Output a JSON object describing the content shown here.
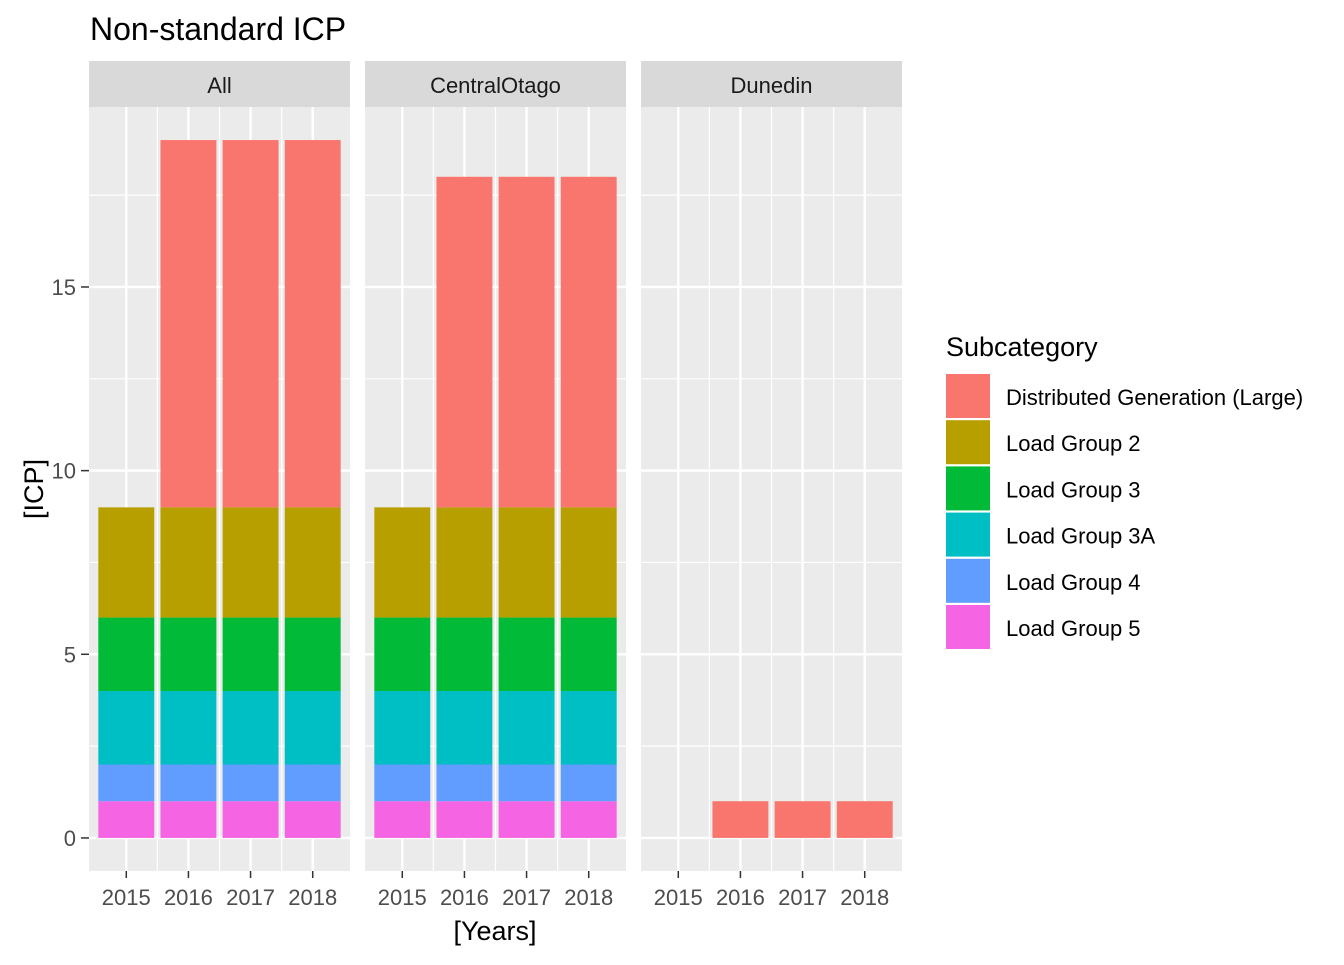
{
  "chart_data": {
    "type": "bar",
    "stacked": true,
    "title": "Non-standard ICP",
    "xlabel": "[Years]",
    "ylabel": "[ICP]",
    "categories": [
      "2015",
      "2016",
      "2017",
      "2018"
    ],
    "ylim": [
      -0.9,
      19.9
    ],
    "y_ticks": [
      0,
      5,
      10,
      15
    ],
    "grid": true,
    "legend": {
      "title": "Subcategory",
      "placement": "right"
    },
    "series_order": [
      "Load Group 5",
      "Load Group 4",
      "Load Group 3A",
      "Load Group 3",
      "Load Group 2",
      "Distributed Generation (Large)"
    ],
    "legend_order": [
      "Distributed Generation (Large)",
      "Load Group 2",
      "Load Group 3",
      "Load Group 3A",
      "Load Group 4",
      "Load Group 5"
    ],
    "colors": {
      "Distributed Generation (Large)": "#F8766D",
      "Load Group 2": "#B79F00",
      "Load Group 3": "#00BA38",
      "Load Group 3A": "#00BFC4",
      "Load Group 4": "#619CFF",
      "Load Group 5": "#F564E3"
    },
    "facets": [
      {
        "name": "All",
        "series": [
          {
            "name": "Load Group 5",
            "values": [
              1,
              1,
              1,
              1
            ]
          },
          {
            "name": "Load Group 4",
            "values": [
              1,
              1,
              1,
              1
            ]
          },
          {
            "name": "Load Group 3A",
            "values": [
              2,
              2,
              2,
              2
            ]
          },
          {
            "name": "Load Group 3",
            "values": [
              2,
              2,
              2,
              2
            ]
          },
          {
            "name": "Load Group 2",
            "values": [
              3,
              3,
              3,
              3
            ]
          },
          {
            "name": "Distributed Generation (Large)",
            "values": [
              0,
              10,
              10,
              10
            ]
          }
        ]
      },
      {
        "name": "CentralOtago",
        "series": [
          {
            "name": "Load Group 5",
            "values": [
              1,
              1,
              1,
              1
            ]
          },
          {
            "name": "Load Group 4",
            "values": [
              1,
              1,
              1,
              1
            ]
          },
          {
            "name": "Load Group 3A",
            "values": [
              2,
              2,
              2,
              2
            ]
          },
          {
            "name": "Load Group 3",
            "values": [
              2,
              2,
              2,
              2
            ]
          },
          {
            "name": "Load Group 2",
            "values": [
              3,
              3,
              3,
              3
            ]
          },
          {
            "name": "Distributed Generation (Large)",
            "values": [
              0,
              9,
              9,
              9
            ]
          }
        ]
      },
      {
        "name": "Dunedin",
        "series": [
          {
            "name": "Load Group 5",
            "values": [
              0,
              0,
              0,
              0
            ]
          },
          {
            "name": "Load Group 4",
            "values": [
              0,
              0,
              0,
              0
            ]
          },
          {
            "name": "Load Group 3A",
            "values": [
              0,
              0,
              0,
              0
            ]
          },
          {
            "name": "Load Group 3",
            "values": [
              0,
              0,
              0,
              0
            ]
          },
          {
            "name": "Load Group 2",
            "values": [
              0,
              0,
              0,
              0
            ]
          },
          {
            "name": "Distributed Generation (Large)",
            "values": [
              0,
              1,
              1,
              1
            ]
          }
        ]
      }
    ]
  }
}
